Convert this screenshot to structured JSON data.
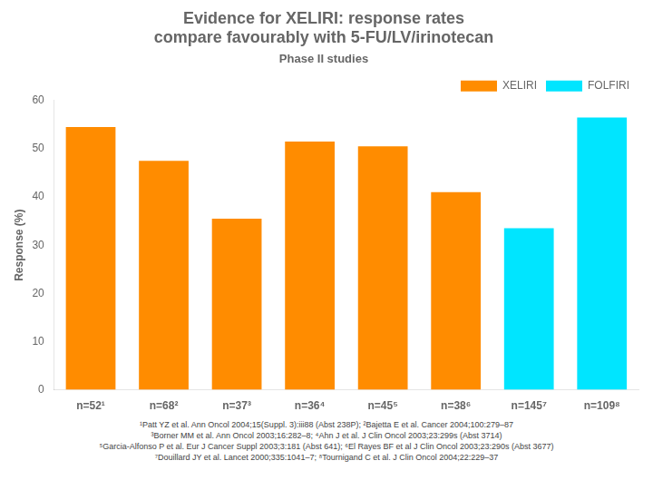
{
  "chart_data": {
    "type": "bar",
    "title": [
      "Evidence for XELIRI: response rates",
      "compare favourably with 5-FU/LV/irinotecan"
    ],
    "subtitle": "Phase II studies",
    "y_label": "Response (%)",
    "categories": [
      "n=52¹",
      "n=68²",
      "n=37³",
      "n=36⁴",
      "n=45⁵",
      "n=38⁶",
      "n=145⁷",
      "n=109⁸"
    ],
    "series": [
      {
        "name": "XELIRI",
        "color": "#ff8c00",
        "values": [
          54.5,
          47.5,
          35.5,
          51.5,
          50.5,
          41.0,
          null,
          null
        ]
      },
      {
        "name": "FOLFIRI",
        "color": "#00e5ff",
        "values": [
          null,
          null,
          null,
          null,
          null,
          null,
          33.5,
          56.5
        ]
      }
    ],
    "ylim": [
      0,
      60
    ],
    "yticks": [
      0,
      10,
      20,
      30,
      40,
      50,
      60
    ],
    "grid": false,
    "legend": "upper right",
    "annotations": [
      "¹Patt YZ et al. Ann Oncol 2004;15(Suppl. 3):iii88 (Abst 238P); ²Bajetta E et al. Cancer 2004;100:279–87",
      "³Borner MM et al. Ann Oncol 2003;16:282–8; ⁴Ahn J et al. J Clin Oncol 2003;23:299s (Abst 3714)",
      "⁵Garcia-Alfonso P et al. Eur J Cancer Suppl 2003;3:181 (Abst 641); ⁶El Rayes BF et al J Clin Oncol 2003;23:290s (Abst 3677)",
      "⁷Douillard JY et al. Lancet 2000;335:1041–7; ⁸Tournigand C et al. J Clin Oncol 2004;22:229–37"
    ]
  }
}
